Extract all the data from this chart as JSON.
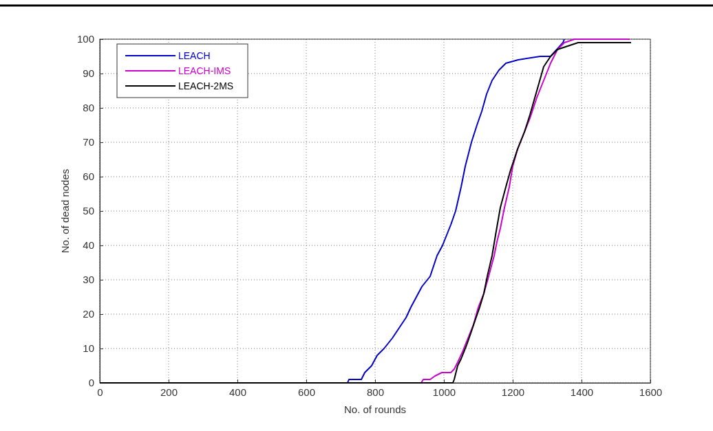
{
  "chart_data": {
    "type": "line",
    "xlabel": "No. of rounds",
    "ylabel": "No. of dead nodes",
    "xlim": [
      0,
      1600
    ],
    "ylim": [
      0,
      100
    ],
    "xticks": [
      0,
      200,
      400,
      600,
      800,
      1000,
      1200,
      1400,
      1600
    ],
    "yticks": [
      0,
      10,
      20,
      30,
      40,
      50,
      60,
      70,
      80,
      90,
      100
    ],
    "grid": true,
    "legend": "top left",
    "line_style": "solid",
    "marker": "none",
    "series": [
      {
        "name": "LEACH",
        "color": "#0000cc",
        "x": [
          0,
          720,
          724,
          760,
          770,
          790,
          806,
          826,
          850,
          870,
          890,
          904,
          920,
          936,
          960,
          980,
          996,
          1020,
          1034,
          1050,
          1062,
          1080,
          1096,
          1110,
          1124,
          1140,
          1160,
          1180,
          1216,
          1280,
          1310,
          1346,
          1350
        ],
        "values": [
          0,
          0,
          1,
          1,
          3,
          5,
          8,
          10,
          13,
          16,
          19,
          22,
          25,
          28,
          31,
          37,
          40,
          46,
          50,
          57,
          63,
          70,
          75,
          79,
          84,
          88,
          91,
          93,
          94,
          95,
          95,
          99,
          100
        ]
      },
      {
        "name": "LEACH-IMS",
        "color": "#cc00cc",
        "x": [
          0,
          934,
          940,
          960,
          974,
          994,
          1020,
          1030,
          1040,
          1054,
          1070,
          1086,
          1100,
          1116,
          1130,
          1146,
          1154,
          1164,
          1176,
          1190,
          1200,
          1214,
          1230,
          1250,
          1270,
          1290,
          1310,
          1330,
          1350,
          1380,
          1540
        ],
        "values": [
          0,
          0,
          1,
          1,
          2,
          3,
          3,
          4,
          6,
          9,
          13,
          17,
          22,
          26,
          31,
          37,
          41,
          45,
          51,
          57,
          63,
          68,
          72,
          77,
          83,
          88,
          93,
          97,
          99,
          100,
          100
        ]
      },
      {
        "name": "LEACH-2MS",
        "color": "#000000",
        "x": [
          0,
          1026,
          1030,
          1040,
          1050,
          1066,
          1080,
          1090,
          1104,
          1116,
          1126,
          1140,
          1150,
          1164,
          1180,
          1194,
          1214,
          1234,
          1250,
          1270,
          1290,
          1310,
          1330,
          1360,
          1390,
          1544
        ],
        "values": [
          0,
          0,
          1,
          5,
          7,
          11,
          15,
          18,
          22,
          26,
          31,
          37,
          43,
          51,
          57,
          62,
          68,
          73,
          78,
          85,
          92,
          95,
          97,
          98,
          99,
          99
        ]
      }
    ]
  }
}
